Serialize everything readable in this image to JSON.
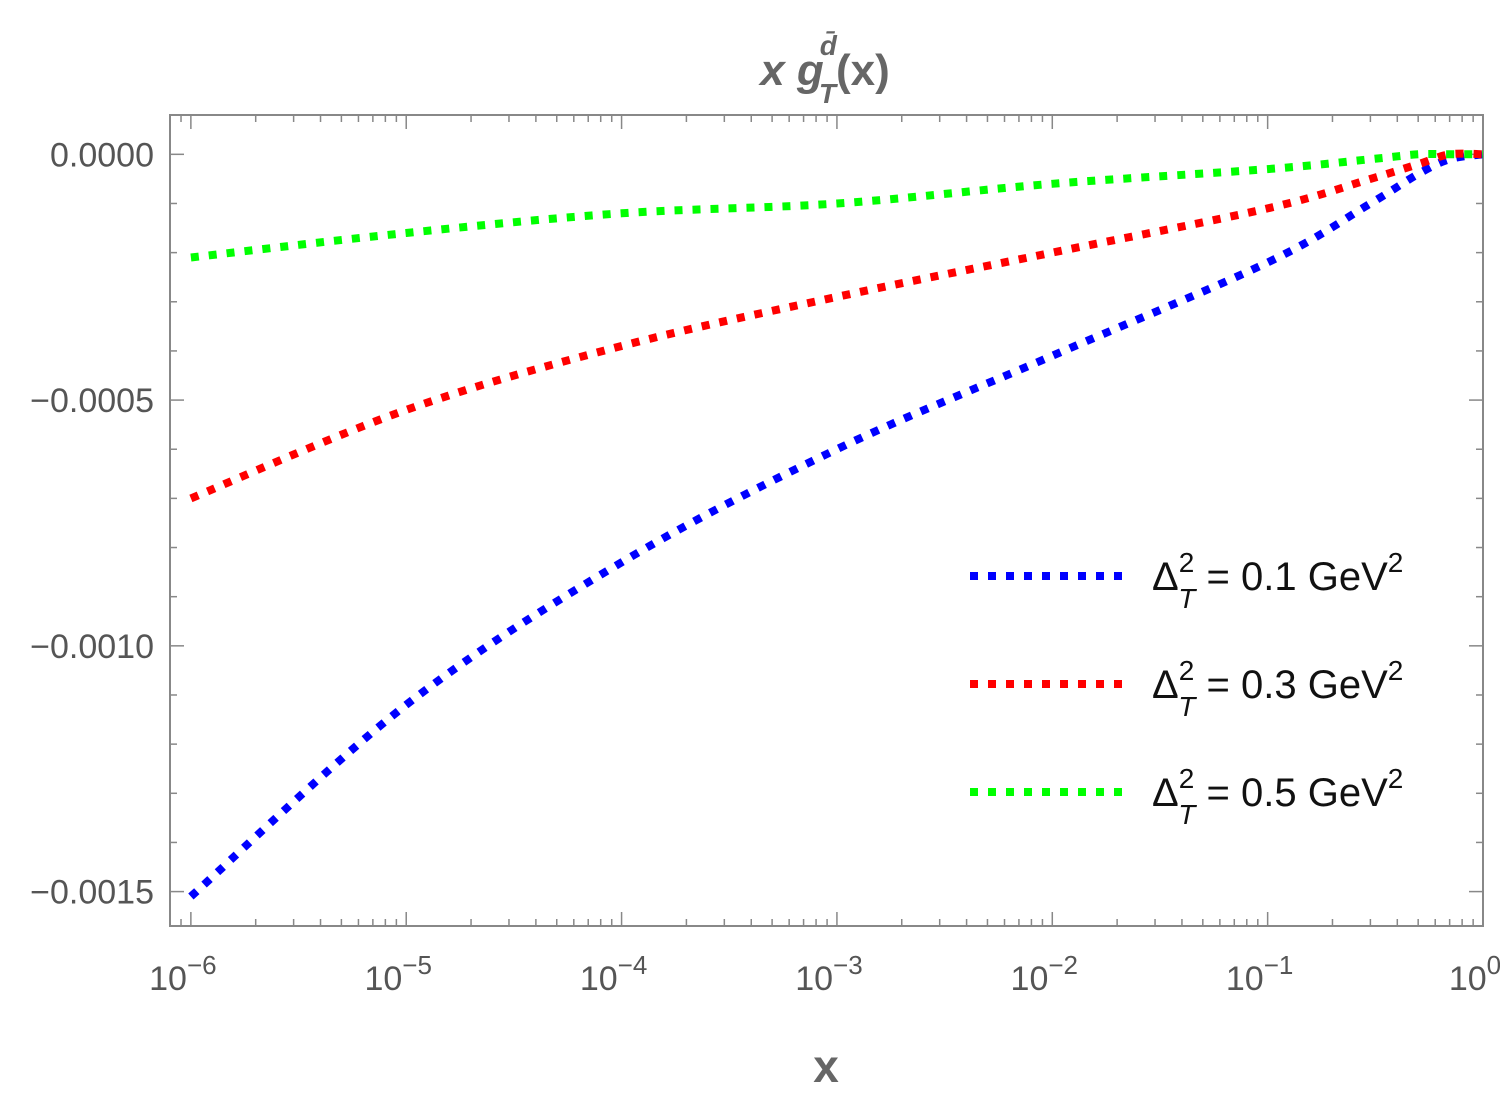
{
  "chart_data": {
    "type": "line",
    "title": {
      "prefix": "x g",
      "superscript": "d̄",
      "subscript": "T",
      "suffix": "(x)"
    },
    "xlabel": "x",
    "ylabel": "",
    "x_scale": "log",
    "xlim": [
      8e-07,
      1.0
    ],
    "ylim": [
      -0.00157,
      8e-05
    ],
    "grid": false,
    "legend_position": "right",
    "x_ticks": [
      {
        "value": 1e-06,
        "base": "10",
        "exp": "−6"
      },
      {
        "value": 1e-05,
        "base": "10",
        "exp": "−5"
      },
      {
        "value": 0.0001,
        "base": "10",
        "exp": "−4"
      },
      {
        "value": 0.001,
        "base": "10",
        "exp": "−3"
      },
      {
        "value": 0.01,
        "base": "10",
        "exp": "−2"
      },
      {
        "value": 0.1,
        "base": "10",
        "exp": "−1"
      },
      {
        "value": 1,
        "base": "10",
        "exp": "0"
      }
    ],
    "y_ticks": [
      {
        "value": 0.0,
        "label": "0.0000"
      },
      {
        "value": -0.0005,
        "label": "−0.0005"
      },
      {
        "value": -0.001,
        "label": "−0.0010"
      },
      {
        "value": -0.0015,
        "label": "−0.0015"
      }
    ],
    "x": [
      1e-06,
      1e-05,
      0.0001,
      0.001,
      0.01,
      0.1,
      0.3,
      0.5,
      0.7,
      1.0
    ],
    "series": [
      {
        "name": "ΔT² = 0.1 GeV²",
        "legend": {
          "delta": "Δ",
          "sup": "2",
          "sub": "T",
          "value": " = 0.1 GeV",
          "unit_sup": "2"
        },
        "color": "#0000ff",
        "values": [
          -0.00151,
          -0.00112,
          -0.00083,
          -0.0006,
          -0.00041,
          -0.00022,
          -0.0001,
          -4e-05,
          -1e-05,
          0.0
        ]
      },
      {
        "name": "ΔT² = 0.3 GeV²",
        "legend": {
          "delta": "Δ",
          "sup": "2",
          "sub": "T",
          "value": " = 0.3 GeV",
          "unit_sup": "2"
        },
        "color": "#ff0000",
        "values": [
          -0.0007,
          -0.00052,
          -0.00039,
          -0.00029,
          -0.0002,
          -0.00011,
          -5e-05,
          -2e-05,
          0.0,
          0.0
        ]
      },
      {
        "name": "ΔT² = 0.5 GeV²",
        "legend": {
          "delta": "Δ",
          "sup": "2",
          "sub": "T",
          "value": " = 0.5 GeV",
          "unit_sup": "2"
        },
        "color": "#00ff00",
        "values": [
          -0.00021,
          -0.00016,
          -0.00012,
          -0.0001,
          -6e-05,
          -3e-05,
          -1e-05,
          0.0,
          0.0,
          0.0
        ]
      }
    ]
  }
}
